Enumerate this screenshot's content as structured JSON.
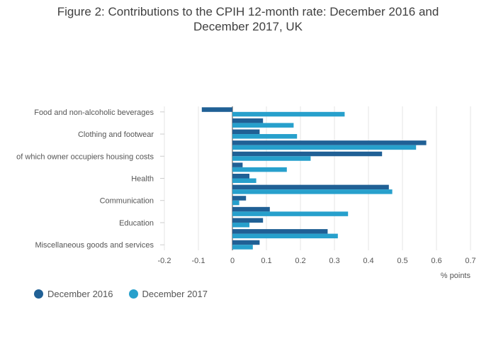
{
  "title_line1": "Figure 2: Contributions to the CPIH 12-month rate: December 2016 and",
  "title_line2": "December 2017, UK",
  "colors": {
    "series1": "#206095",
    "series2": "#27a0cc",
    "grid": "#e6e6e6"
  },
  "chart_data": {
    "type": "bar",
    "orientation": "horizontal",
    "xlabel": "% points",
    "xlim": [
      -0.2,
      0.7
    ],
    "xticks": [
      "-0.2",
      "-0.1",
      "0",
      "0.1",
      "0.2",
      "0.3",
      "0.4",
      "0.5",
      "0.6",
      "0.7"
    ],
    "grid": true,
    "legend_position": "bottom-left",
    "category_labels_shown": [
      "Food and non-alcoholic beverages",
      "Clothing and footwear",
      "of which owner occupiers housing costs",
      "Health",
      "Communication",
      "Education",
      "Miscellaneous goods and services"
    ],
    "rows": 13,
    "label_rows": [
      0,
      2,
      4,
      6,
      8,
      10,
      12
    ],
    "series": [
      {
        "name": "December 2016",
        "values": [
          -0.09,
          0.09,
          0.08,
          0.57,
          0.44,
          0.03,
          0.05,
          0.46,
          0.04,
          0.11,
          0.09,
          0.28,
          0.08
        ]
      },
      {
        "name": "December 2017",
        "values": [
          0.33,
          0.18,
          0.19,
          0.54,
          0.23,
          0.16,
          0.07,
          0.47,
          0.02,
          0.34,
          0.05,
          0.31,
          0.06
        ]
      }
    ]
  }
}
